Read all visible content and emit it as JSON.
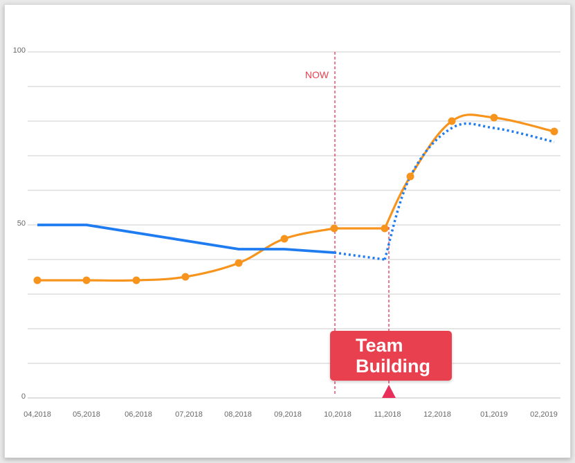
{
  "chart_data": {
    "type": "line",
    "x": [
      "04,2018",
      "05,2018",
      "06,2018",
      "07,2018",
      "08,2018",
      "09,2018",
      "10,2018",
      "11,2018",
      "11.5,2018",
      "12,2018",
      "01,2019",
      "02,2019"
    ],
    "x_tick_labels": [
      "04,2018",
      "05,2018",
      "06,2018",
      "07,2018",
      "08,2018",
      "09,2018",
      "10,2018",
      "11,2018",
      "12,2018",
      "01,2019",
      "02,2019"
    ],
    "y_tick_labels": [
      "100",
      "50",
      "0"
    ],
    "ylim": [
      0,
      100
    ],
    "grid": true,
    "series": [
      {
        "color": "#f7941d",
        "style": "solid-smooth-with-markers",
        "points": [
          {
            "x": "04,2018",
            "y": 34
          },
          {
            "x": "05,2018",
            "y": 34
          },
          {
            "x": "06,2018",
            "y": 34
          },
          {
            "x": "07,2018",
            "y": 35
          },
          {
            "x": "08,2018",
            "y": 39
          },
          {
            "x": "09,2018",
            "y": 46
          },
          {
            "x": "10,2018",
            "y": 49
          },
          {
            "x": "11,2018",
            "y": 49
          },
          {
            "x": "11.5,2018",
            "y": 64
          },
          {
            "x": "12,2018",
            "y": 80
          },
          {
            "x": "01,2019",
            "y": 81
          },
          {
            "x": "02,2019",
            "y": 77
          }
        ]
      },
      {
        "color": "#1f7cf0",
        "style": "solid",
        "points": [
          {
            "x": "04,2018",
            "y": 50
          },
          {
            "x": "05,2018",
            "y": 50
          },
          {
            "x": "08,2018",
            "y": 43
          },
          {
            "x": "09,2018",
            "y": 43
          },
          {
            "x": "10,2018",
            "y": 42
          }
        ]
      },
      {
        "color": "#1f7cf0",
        "style": "dotted-forecast",
        "points": [
          {
            "x": "10,2018",
            "y": 42
          },
          {
            "x": "11,2018",
            "y": 40
          },
          {
            "x": "11.5,2018",
            "y": 64
          },
          {
            "x": "12,2018",
            "y": 78
          },
          {
            "x": "01,2019",
            "y": 78
          },
          {
            "x": "02,2019",
            "y": 74
          }
        ]
      }
    ],
    "annotations": [
      {
        "label": "NOW",
        "x": "10,2018",
        "color": "#e9404f",
        "style": "dashed-vertical"
      },
      {
        "label": "Team Building",
        "x": "11,2018",
        "color": "#e9404f",
        "style": "callout-with-marker"
      }
    ]
  },
  "labels": {
    "now": "NOW",
    "callout_line1": "Team",
    "callout_line2": "Building"
  }
}
